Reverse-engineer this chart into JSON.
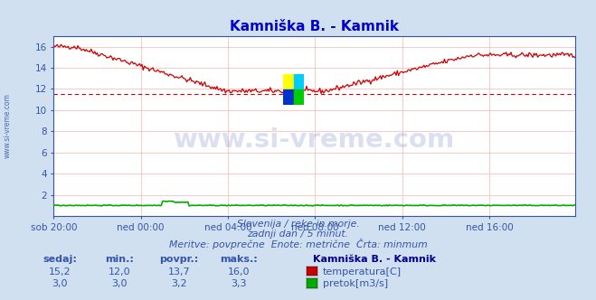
{
  "title": "Kamniška B. - Kamnik",
  "title_color": "#0000cc",
  "bg_color": "#d0e0f0",
  "plot_bg_color": "#ffffff",
  "grid_color": "#ffb0b0",
  "x_labels": [
    "sob 20:00",
    "ned 00:00",
    "ned 04:00",
    "ned 08:00",
    "ned 12:00",
    "ned 16:00"
  ],
  "x_ticks_pos": [
    0,
    72,
    144,
    216,
    288,
    360
  ],
  "total_points": 432,
  "ylim": [
    0,
    17
  ],
  "y_ticks": [
    2,
    4,
    6,
    8,
    10,
    12,
    14,
    16
  ],
  "temp_color": "#cc0000",
  "flow_color": "#00aa00",
  "avg_line_color": "#cc0000",
  "avg_value": 11.5,
  "watermark_text": "www.si-vreme.com",
  "watermark_color": "#3355aa",
  "watermark_alpha": 0.18,
  "subtitle1": "Slovenija / reke in morje.",
  "subtitle2": "zadnji dan / 5 minut.",
  "subtitle3": "Meritve: povprečne  Enote: metrične  Črta: minmum",
  "subtitle_color": "#3355aa",
  "label_sedaj": "sedaj:",
  "label_min": "min.:",
  "label_povpr": "povpr.:",
  "label_maks": "maks.:",
  "temp_sedaj": "15,2",
  "temp_min": "12,0",
  "temp_povpr": "13,7",
  "temp_maks": "16,0",
  "flow_sedaj": "3,0",
  "flow_min": "3,0",
  "flow_povpr": "3,2",
  "flow_maks": "3,3",
  "legend_title": "Kamniška B. - Kamnik",
  "legend_temp": "temperatura[C]",
  "legend_flow": "pretok[m3/s]",
  "left_label": "www.si-vreme.com",
  "left_label_color": "#3355aa",
  "border_color": "#3355aa",
  "logo_colors": [
    "#ffff00",
    "#00ccff",
    "#0033cc",
    "#00cc00"
  ]
}
